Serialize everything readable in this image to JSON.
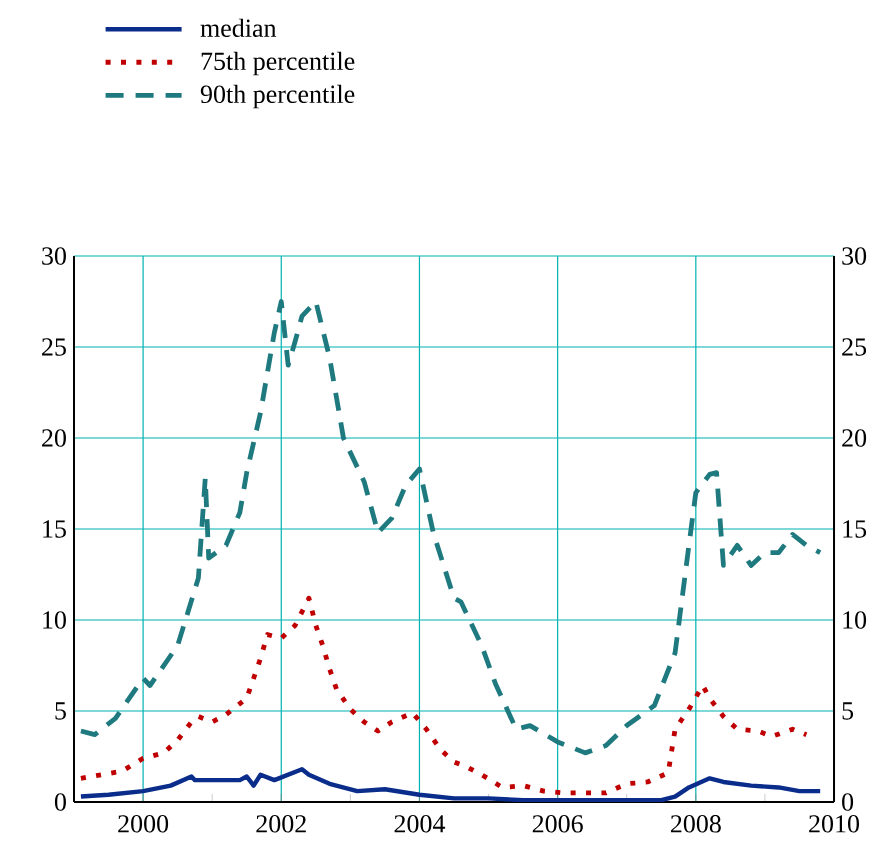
{
  "chart_data": {
    "type": "line",
    "legend": "top left",
    "grid": true,
    "xlim": [
      1999,
      2010
    ],
    "xticks": [
      2000,
      2002,
      2004,
      2006,
      2008,
      2010
    ],
    "ylim": [
      0,
      30
    ],
    "yticks": [
      0,
      5,
      10,
      15,
      20,
      25,
      30
    ],
    "y2lim": [
      0,
      30
    ],
    "y2ticks": [
      0,
      5,
      10,
      15,
      20,
      25,
      30
    ],
    "series": [
      {
        "name": "median",
        "color": "#0a2d8c",
        "line_style": "solid",
        "x": [
          1999.1,
          1999.5,
          2000.0,
          2000.4,
          2000.7,
          2000.75,
          2001.4,
          2001.5,
          2001.6,
          2001.7,
          2001.9,
          2002.3,
          2002.4,
          2002.7,
          2003.1,
          2003.5,
          2004.0,
          2004.5,
          2005.0,
          2005.5,
          2006.5,
          2007.5,
          2007.7,
          2007.9,
          2008.2,
          2008.4,
          2008.8,
          2009.2,
          2009.5,
          2009.8
        ],
        "values": [
          0.3,
          0.4,
          0.6,
          0.9,
          1.4,
          1.2,
          1.2,
          1.4,
          0.9,
          1.5,
          1.2,
          1.8,
          1.5,
          1.0,
          0.6,
          0.7,
          0.4,
          0.2,
          0.2,
          0.1,
          0.1,
          0.1,
          0.3,
          0.8,
          1.3,
          1.1,
          0.9,
          0.8,
          0.6,
          0.6
        ]
      },
      {
        "name": "75th percentile",
        "color": "#c00000",
        "line_style": "dotted",
        "x": [
          1999.1,
          1999.4,
          1999.7,
          2000.0,
          2000.3,
          2000.5,
          2000.7,
          2000.8,
          2001.0,
          2001.2,
          2001.5,
          2001.6,
          2001.7,
          2001.8,
          2002.0,
          2002.2,
          2002.4,
          2002.5,
          2002.6,
          2002.7,
          2002.8,
          2003.0,
          2003.2,
          2003.4,
          2003.6,
          2003.9,
          2004.1,
          2004.3,
          2004.5,
          2004.7,
          2004.9,
          2005.2,
          2005.5,
          2005.8,
          2006.1,
          2006.4,
          2006.7,
          2007.0,
          2007.3,
          2007.6,
          2007.7,
          2007.9,
          2008.1,
          2008.2,
          2008.4,
          2008.6,
          2008.9,
          2009.1,
          2009.4,
          2009.6
        ],
        "values": [
          1.3,
          1.5,
          1.7,
          2.4,
          2.7,
          3.4,
          4.4,
          4.7,
          4.4,
          4.8,
          5.7,
          6.8,
          7.9,
          9.2,
          9.0,
          9.7,
          11.2,
          9.7,
          8.6,
          7.3,
          6.2,
          5.1,
          4.4,
          3.9,
          4.4,
          4.9,
          4.0,
          2.9,
          2.2,
          1.9,
          1.5,
          0.8,
          0.9,
          0.6,
          0.5,
          0.5,
          0.5,
          1.0,
          1.1,
          1.6,
          4.0,
          5.1,
          6.4,
          5.7,
          4.7,
          4.0,
          3.9,
          3.6,
          4.0,
          3.7
        ]
      },
      {
        "name": "90th percentile",
        "color": "#1f7a80",
        "line_style": "dashed",
        "x": [
          1999.1,
          1999.3,
          1999.6,
          2000.0,
          2000.1,
          2000.5,
          2000.8,
          2000.9,
          2000.95,
          2001.2,
          2001.4,
          2001.5,
          2001.7,
          2001.9,
          2002.0,
          2002.1,
          2002.2,
          2002.3,
          2002.5,
          2002.7,
          2002.9,
          2003.2,
          2003.4,
          2003.6,
          2003.8,
          2004.0,
          2004.2,
          2004.5,
          2004.6,
          2004.9,
          2005.1,
          2005.4,
          2005.6,
          2006.0,
          2006.4,
          2006.7,
          2007.0,
          2007.4,
          2007.7,
          2007.9,
          2008.0,
          2008.2,
          2008.3,
          2008.4,
          2008.6,
          2008.8,
          2009.0,
          2009.2,
          2009.4,
          2009.6,
          2009.8
        ],
        "values": [
          3.9,
          3.7,
          4.6,
          6.8,
          6.4,
          8.6,
          12.3,
          17.8,
          13.4,
          14.1,
          15.9,
          18.1,
          21.4,
          25.8,
          27.5,
          24.0,
          25.3,
          26.7,
          27.5,
          24.4,
          20.0,
          17.6,
          14.8,
          15.6,
          17.4,
          18.3,
          14.8,
          11.2,
          11.0,
          8.6,
          6.5,
          4.0,
          4.2,
          3.3,
          2.7,
          3.1,
          4.2,
          5.3,
          8.2,
          14.1,
          17.0,
          18.0,
          18.1,
          13.0,
          14.1,
          13.0,
          13.7,
          13.7,
          14.7,
          14.1,
          13.7
        ]
      }
    ]
  }
}
